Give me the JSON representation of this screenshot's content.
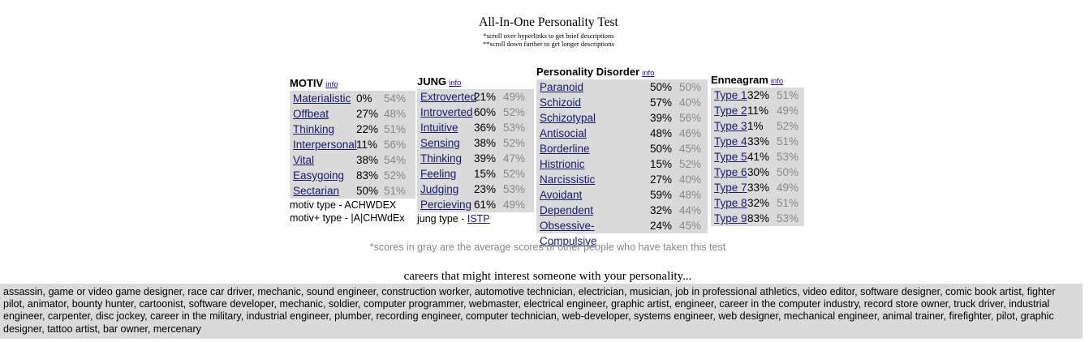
{
  "header": {
    "title": "All-In-One Personality Test",
    "note1": "*scroll over hyperlinks to get brief descriptions",
    "note2": "**scroll down further to get longer descriptions"
  },
  "motiv": {
    "heading": "MOTIV",
    "info": "info",
    "rows": [
      {
        "label": "Materialistic",
        "score": "0%",
        "avg": "54%"
      },
      {
        "label": "Offbeat",
        "score": "27%",
        "avg": "48%"
      },
      {
        "label": "Thinking",
        "score": "22%",
        "avg": "51%"
      },
      {
        "label": "Interpersonal",
        "score": "11%",
        "avg": "56%"
      },
      {
        "label": "Vital",
        "score": "38%",
        "avg": "54%"
      },
      {
        "label": "Easygoing",
        "score": "83%",
        "avg": "52%"
      },
      {
        "label": "Sectarian",
        "score": "50%",
        "avg": "51%"
      }
    ],
    "type_line": "motiv type - ACHWDEX",
    "type_plus_line": "motiv+ type - |A|CHWdEx"
  },
  "jung": {
    "heading": "JUNG",
    "info": "info",
    "rows": [
      {
        "label": "Extroverted",
        "score": "21%",
        "avg": "49%"
      },
      {
        "label": "Introverted",
        "score": "60%",
        "avg": "52%"
      },
      {
        "label": "Intuitive",
        "score": "36%",
        "avg": "53%"
      },
      {
        "label": "Sensing",
        "score": "38%",
        "avg": "52%"
      },
      {
        "label": "Thinking",
        "score": "39%",
        "avg": "47%"
      },
      {
        "label": "Feeling",
        "score": "15%",
        "avg": "52%"
      },
      {
        "label": "Judging",
        "score": "23%",
        "avg": "53%"
      },
      {
        "label": "Percieving",
        "score": "61%",
        "avg": "49%"
      }
    ],
    "type_label": "jung type - ",
    "type_value": "ISTP"
  },
  "pd": {
    "heading": "Personality Disorder",
    "info": "info",
    "rows": [
      {
        "label": "Paranoid",
        "score": "50%",
        "avg": "50%"
      },
      {
        "label": "Schizoid",
        "score": "57%",
        "avg": "40%"
      },
      {
        "label": "Schizotypal",
        "score": "39%",
        "avg": "56%"
      },
      {
        "label": "Antisocial",
        "score": "48%",
        "avg": "46%"
      },
      {
        "label": "Borderline",
        "score": "50%",
        "avg": "45%"
      },
      {
        "label": "Histrionic",
        "score": "15%",
        "avg": "52%"
      },
      {
        "label": "Narcissistic",
        "score": "27%",
        "avg": "40%"
      },
      {
        "label": "Avoidant",
        "score": "59%",
        "avg": "48%"
      },
      {
        "label": "Dependent",
        "score": "32%",
        "avg": "44%"
      },
      {
        "label": "Obsessive-Compulsive",
        "score": "24%",
        "avg": "45%"
      }
    ]
  },
  "enneagram": {
    "heading": "Enneagram",
    "info": "info",
    "rows": [
      {
        "label": "Type 1",
        "score": "32%",
        "avg": "51%"
      },
      {
        "label": "Type 2",
        "score": "11%",
        "avg": "49%"
      },
      {
        "label": "Type 3",
        "score": "1%",
        "avg": "52%"
      },
      {
        "label": "Type 4",
        "score": "33%",
        "avg": "51%"
      },
      {
        "label": "Type 5",
        "score": "41%",
        "avg": "53%"
      },
      {
        "label": "Type 6",
        "score": "30%",
        "avg": "50%"
      },
      {
        "label": "Type 7",
        "score": "33%",
        "avg": "49%"
      },
      {
        "label": "Type 8",
        "score": "32%",
        "avg": "51%"
      },
      {
        "label": "Type 9",
        "score": "83%",
        "avg": "53%"
      }
    ]
  },
  "footnote": "*scores in gray are the average scores of other people who have taken this test",
  "careers": {
    "heading": "careers that might interest someone with your personality...",
    "text": "assassin, game or video game designer, race car driver, mechanic, sound engineer, construction worker, automotive technician, electrician, musician, job in professional athletics, video editor, software designer, comic book artist, fighter pilot, animator, bounty hunter, cartoonist, software developer, mechanic, soldier, computer programmer, webmaster, electrical engineer, graphic artist, engineer, career in the computer industry, record store owner, truck driver, industrial engineer, carpenter, disc jockey, career in the military, industrial engineer, plumber, recording engineer, computer technician, web-developer, systems engineer, web designer, mechanical engineer, animal trainer, firefighter, pilot, graphic designer, tattoo artist, bar owner, mercenary"
  },
  "colors": {
    "panel_bg": "#dadada",
    "link": "#1a1a6e",
    "avg_gray": "#888888"
  }
}
